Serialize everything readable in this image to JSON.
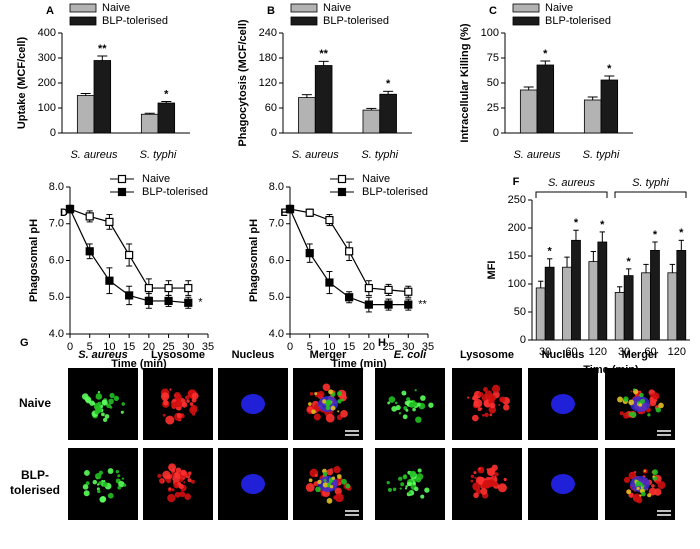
{
  "chart_data": [
    {
      "type": "bar",
      "label": "A",
      "y_label": "Uptake (MCF/cell)",
      "categories": [
        "S. aureus",
        "S. typhi"
      ],
      "ylim": [
        0,
        400
      ],
      "yticks": [
        0,
        100,
        200,
        300,
        400
      ],
      "series": [
        {
          "name": "Naive",
          "color": "#b3b3b3",
          "values": [
            150,
            75
          ],
          "errors": [
            8,
            4
          ],
          "annotations": [
            null,
            null
          ]
        },
        {
          "name": "BLP-tolerised",
          "color": "#1a1a1a",
          "values": [
            290,
            120
          ],
          "errors": [
            18,
            6
          ],
          "annotations": [
            "**",
            "*"
          ]
        }
      ]
    },
    {
      "type": "bar",
      "label": "B",
      "y_label": "Phagocytosis (MCF/cell)",
      "categories": [
        "S. aureus",
        "S. typhi"
      ],
      "ylim": [
        0,
        240
      ],
      "yticks": [
        0,
        60,
        120,
        180,
        240
      ],
      "series": [
        {
          "name": "Naive",
          "color": "#b3b3b3",
          "values": [
            85,
            55
          ],
          "errors": [
            7,
            4
          ],
          "annotations": [
            null,
            null
          ]
        },
        {
          "name": "BLP-tolerised",
          "color": "#1a1a1a",
          "values": [
            162,
            93
          ],
          "errors": [
            10,
            7
          ],
          "annotations": [
            "**",
            "*"
          ]
        }
      ]
    },
    {
      "type": "bar",
      "label": "C",
      "y_label": "Intracellular Killing (%)",
      "categories": [
        "S. aureus",
        "S. typhi"
      ],
      "ylim": [
        0,
        100
      ],
      "yticks": [
        0,
        25,
        50,
        75,
        100
      ],
      "series": [
        {
          "name": "Naive",
          "color": "#b3b3b3",
          "values": [
            43,
            33
          ],
          "errors": [
            3,
            3
          ],
          "annotations": [
            null,
            null
          ]
        },
        {
          "name": "BLP-tolerised",
          "color": "#1a1a1a",
          "values": [
            68,
            53
          ],
          "errors": [
            4,
            4
          ],
          "annotations": [
            "*",
            "*"
          ]
        }
      ]
    },
    {
      "type": "line",
      "label": "D",
      "x_label": "Time (min)",
      "y_label": "Phagosomal pH",
      "annotation": "*",
      "x": [
        0,
        5,
        10,
        15,
        20,
        25,
        30
      ],
      "xlim": [
        0,
        35
      ],
      "xticks": [
        0,
        5,
        10,
        15,
        20,
        25,
        30,
        35
      ],
      "ylim": [
        4,
        8
      ],
      "yticks": [
        {
          "value": 4,
          "label": "4.0"
        },
        {
          "value": 5,
          "label": "5.0"
        },
        {
          "value": 6,
          "label": "6.0"
        },
        {
          "value": 7,
          "label": "7.0"
        },
        {
          "value": 8,
          "label": "8.0"
        }
      ],
      "series": [
        {
          "name": "Naive",
          "color": "#000000",
          "marker_fill": "#ffffff",
          "values": [
            7.4,
            7.2,
            7.05,
            6.15,
            5.25,
            5.25,
            5.25
          ],
          "errors": [
            0.1,
            0.15,
            0.2,
            0.3,
            0.25,
            0.2,
            0.2
          ]
        },
        {
          "name": "BLP-tolerised",
          "color": "#000000",
          "marker_fill": "#000000",
          "values": [
            7.4,
            6.25,
            5.45,
            5.05,
            4.9,
            4.9,
            4.85
          ],
          "errors": [
            0.1,
            0.2,
            0.35,
            0.25,
            0.2,
            0.15,
            0.15
          ]
        }
      ]
    },
    {
      "type": "line",
      "label": "E",
      "x_label": "Time (min)",
      "y_label": "Phagosomal pH",
      "annotation": "**",
      "x": [
        0,
        5,
        10,
        15,
        20,
        25,
        30
      ],
      "xlim": [
        0,
        35
      ],
      "xticks": [
        0,
        5,
        10,
        15,
        20,
        25,
        30,
        35
      ],
      "ylim": [
        4,
        8
      ],
      "yticks": [
        {
          "value": 4,
          "label": "4.0"
        },
        {
          "value": 5,
          "label": "5.0"
        },
        {
          "value": 6,
          "label": "6.0"
        },
        {
          "value": 7,
          "label": "7.0"
        },
        {
          "value": 8,
          "label": "8.0"
        }
      ],
      "series": [
        {
          "name": "Naive",
          "color": "#000000",
          "marker_fill": "#ffffff",
          "values": [
            7.4,
            7.3,
            7.1,
            6.25,
            5.25,
            5.2,
            5.15
          ],
          "errors": [
            0.1,
            0.1,
            0.15,
            0.25,
            0.2,
            0.15,
            0.15
          ]
        },
        {
          "name": "BLP-tolerised",
          "color": "#000000",
          "marker_fill": "#000000",
          "values": [
            7.4,
            6.2,
            5.4,
            5.0,
            4.8,
            4.8,
            4.8
          ],
          "errors": [
            0.1,
            0.25,
            0.3,
            0.15,
            0.2,
            0.15,
            0.15
          ]
        }
      ]
    },
    {
      "type": "bar",
      "label": "F",
      "x_label": "Time (min)",
      "y_label": "MFI",
      "groups": [
        "S. aureus",
        "S. typhi"
      ],
      "categories": [
        "30",
        "60",
        "120",
        "30",
        "60",
        "120"
      ],
      "ylim": [
        0,
        250
      ],
      "yticks": [
        0,
        50,
        100,
        150,
        200,
        250
      ],
      "series": [
        {
          "name": "Naive",
          "color": "#b3b3b3",
          "values": [
            93,
            130,
            140,
            85,
            120,
            120
          ],
          "errors": [
            12,
            18,
            18,
            10,
            15,
            15
          ],
          "annotations": [
            null,
            null,
            null,
            null,
            null,
            null
          ]
        },
        {
          "name": "BLP-tolerised",
          "color": "#1a1a1a",
          "values": [
            130,
            178,
            175,
            115,
            160,
            160
          ],
          "errors": [
            15,
            18,
            18,
            12,
            15,
            18
          ],
          "annotations": [
            "*",
            "*",
            "*",
            "*",
            "*",
            "*"
          ]
        }
      ]
    }
  ],
  "micrographs": [
    {
      "label": "G",
      "columns": [
        "S. aureus",
        "Lysosome",
        "Nucleus",
        "Merger"
      ],
      "rows": [
        "Naive",
        "BLP-tolerised"
      ]
    },
    {
      "label": "H",
      "columns": [
        "E. coli",
        "Lysosome",
        "Nucleus",
        "Merger"
      ],
      "rows": [
        "Naive",
        "BLP-tolerised"
      ]
    }
  ]
}
